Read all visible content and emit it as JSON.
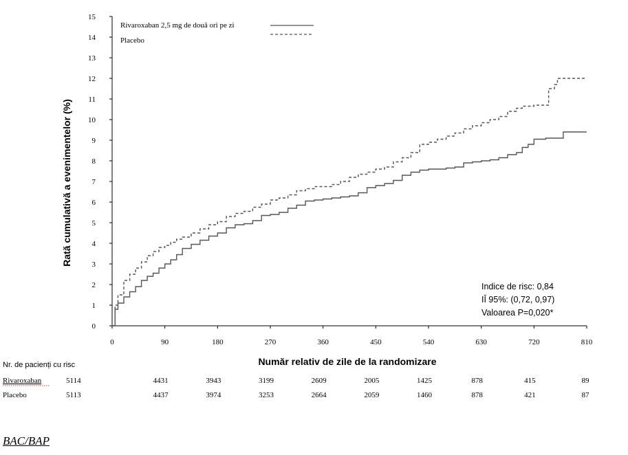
{
  "chart_data": {
    "type": "line",
    "title": "",
    "xlabel": "Număr relativ de zile de la randomizare",
    "ylabel": "Rată cumulativă a evenimentelor (%)",
    "xlim": [
      0,
      810
    ],
    "ylim": [
      0,
      15
    ],
    "xticks": [
      0,
      90,
      180,
      270,
      360,
      450,
      540,
      630,
      720,
      810
    ],
    "yticks": [
      0,
      1,
      2,
      3,
      4,
      5,
      6,
      7,
      8,
      9,
      10,
      11,
      12,
      13,
      14,
      15
    ],
    "grid": false,
    "legend_position": "top",
    "series": [
      {
        "name": "Rivaroxaban 2,5 mg de două ori pe zi",
        "style": "solid",
        "color": "#555555",
        "points": [
          [
            0,
            0
          ],
          [
            5,
            0.8
          ],
          [
            10,
            1.1
          ],
          [
            20,
            1.4
          ],
          [
            30,
            1.65
          ],
          [
            40,
            1.9
          ],
          [
            50,
            2.2
          ],
          [
            60,
            2.4
          ],
          [
            70,
            2.55
          ],
          [
            80,
            2.8
          ],
          [
            90,
            3.0
          ],
          [
            100,
            3.2
          ],
          [
            110,
            3.45
          ],
          [
            120,
            3.75
          ],
          [
            135,
            3.95
          ],
          [
            150,
            4.15
          ],
          [
            165,
            4.35
          ],
          [
            180,
            4.5
          ],
          [
            195,
            4.75
          ],
          [
            210,
            4.9
          ],
          [
            225,
            4.95
          ],
          [
            240,
            5.1
          ],
          [
            255,
            5.35
          ],
          [
            270,
            5.4
          ],
          [
            285,
            5.5
          ],
          [
            300,
            5.7
          ],
          [
            315,
            5.85
          ],
          [
            330,
            6.05
          ],
          [
            345,
            6.1
          ],
          [
            360,
            6.15
          ],
          [
            375,
            6.2
          ],
          [
            390,
            6.25
          ],
          [
            405,
            6.3
          ],
          [
            420,
            6.45
          ],
          [
            435,
            6.7
          ],
          [
            450,
            6.8
          ],
          [
            465,
            6.9
          ],
          [
            480,
            7.05
          ],
          [
            495,
            7.3
          ],
          [
            510,
            7.45
          ],
          [
            525,
            7.55
          ],
          [
            540,
            7.6
          ],
          [
            555,
            7.6
          ],
          [
            570,
            7.65
          ],
          [
            585,
            7.7
          ],
          [
            600,
            7.9
          ],
          [
            615,
            7.95
          ],
          [
            630,
            8.0
          ],
          [
            645,
            8.05
          ],
          [
            660,
            8.15
          ],
          [
            675,
            8.3
          ],
          [
            690,
            8.4
          ],
          [
            700,
            8.65
          ],
          [
            710,
            8.8
          ],
          [
            720,
            9.05
          ],
          [
            740,
            9.1
          ],
          [
            760,
            9.1
          ],
          [
            770,
            9.4
          ],
          [
            810,
            9.4
          ]
        ]
      },
      {
        "name": "Placebo",
        "style": "dashed",
        "color": "#555555",
        "points": [
          [
            0,
            0
          ],
          [
            5,
            1.0
          ],
          [
            10,
            1.5
          ],
          [
            20,
            2.2
          ],
          [
            30,
            2.5
          ],
          [
            40,
            2.8
          ],
          [
            50,
            3.1
          ],
          [
            60,
            3.4
          ],
          [
            70,
            3.6
          ],
          [
            80,
            3.8
          ],
          [
            90,
            3.9
          ],
          [
            100,
            4.05
          ],
          [
            110,
            4.2
          ],
          [
            120,
            4.3
          ],
          [
            135,
            4.5
          ],
          [
            150,
            4.7
          ],
          [
            165,
            4.9
          ],
          [
            180,
            5.05
          ],
          [
            195,
            5.3
          ],
          [
            210,
            5.45
          ],
          [
            225,
            5.55
          ],
          [
            240,
            5.75
          ],
          [
            255,
            5.9
          ],
          [
            270,
            6.1
          ],
          [
            285,
            6.2
          ],
          [
            300,
            6.35
          ],
          [
            315,
            6.55
          ],
          [
            330,
            6.65
          ],
          [
            345,
            6.75
          ],
          [
            360,
            6.75
          ],
          [
            375,
            6.85
          ],
          [
            390,
            7.0
          ],
          [
            405,
            7.2
          ],
          [
            420,
            7.35
          ],
          [
            435,
            7.45
          ],
          [
            450,
            7.6
          ],
          [
            465,
            7.7
          ],
          [
            480,
            7.95
          ],
          [
            495,
            8.15
          ],
          [
            510,
            8.4
          ],
          [
            525,
            8.8
          ],
          [
            540,
            8.9
          ],
          [
            555,
            9.05
          ],
          [
            570,
            9.2
          ],
          [
            585,
            9.35
          ],
          [
            600,
            9.55
          ],
          [
            615,
            9.7
          ],
          [
            630,
            9.85
          ],
          [
            645,
            10.0
          ],
          [
            660,
            10.15
          ],
          [
            675,
            10.4
          ],
          [
            690,
            10.55
          ],
          [
            700,
            10.65
          ],
          [
            720,
            10.7
          ],
          [
            735,
            10.7
          ],
          [
            745,
            11.5
          ],
          [
            755,
            11.7
          ],
          [
            760,
            12.0
          ],
          [
            810,
            12.0
          ]
        ]
      }
    ],
    "annotations": [
      "Indice de risc: 0,84",
      "IÎ 95%: (0,72, 0,97)",
      "Valoarea P=0,020*"
    ]
  },
  "risk_table": {
    "header": "Nr. de pacienți cu risc",
    "rows": [
      {
        "label": "Rivaroxaban",
        "values": [
          "5114",
          "4431",
          "3943",
          "3199",
          "2609",
          "2005",
          "1425",
          "878",
          "415",
          "89"
        ]
      },
      {
        "label": "Placebo",
        "values": [
          "5113",
          "4437",
          "3974",
          "3253",
          "2664",
          "2059",
          "1460",
          "878",
          "421",
          "87"
        ]
      }
    ]
  },
  "footer": {
    "link_text": "BAC/BAP"
  }
}
